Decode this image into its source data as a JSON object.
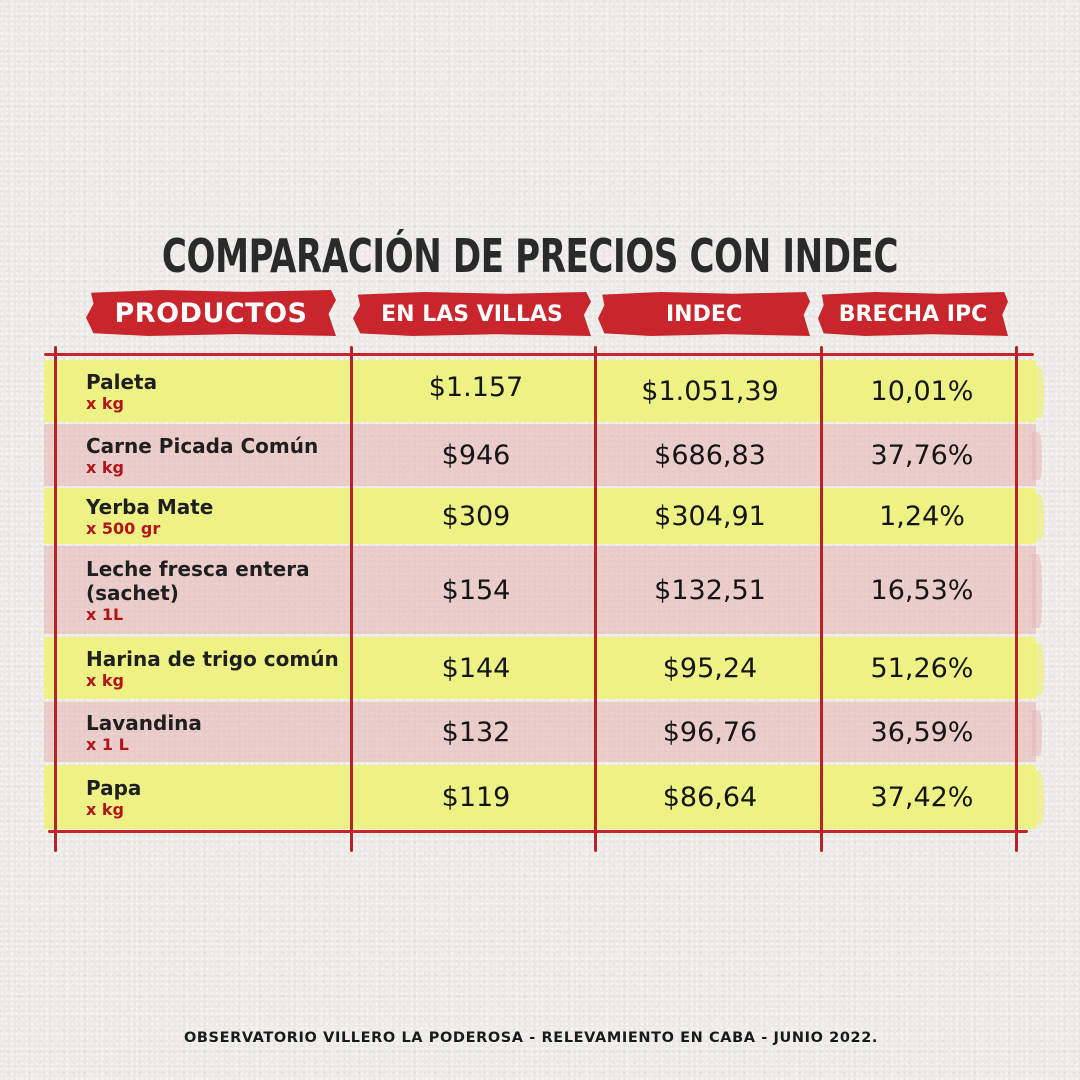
{
  "title": "COMPARACIÓN DE PRECIOS CON INDEC",
  "headers": {
    "productos": "PRODUCTOS",
    "villas": "EN LAS VILLAS",
    "indec": "INDEC",
    "brecha": "BRECHA IPC"
  },
  "rows": [
    {
      "name": "Paleta",
      "unit": "x kg",
      "villas": "$1.157",
      "indec": "$1.051,39",
      "brecha": "10,01%"
    },
    {
      "name": "Carne Picada Común",
      "unit": "x kg",
      "villas": "$946",
      "indec": "$686,83",
      "brecha": "37,76%"
    },
    {
      "name": "Yerba Mate",
      "unit": "x 500 gr",
      "villas": "$309",
      "indec": "$304,91",
      "brecha": "1,24%"
    },
    {
      "name": "Leche fresca entera (sachet)",
      "unit": "x 1L",
      "villas": "$154",
      "indec": "$132,51",
      "brecha": "16,53%"
    },
    {
      "name": "Harina de trigo común",
      "unit": "x kg",
      "villas": "$144",
      "indec": "$95,24",
      "brecha": "51,26%"
    },
    {
      "name": "Lavandina",
      "unit": "x 1 L",
      "villas": "$132",
      "indec": "$96,76",
      "brecha": "36,59%"
    },
    {
      "name": "Papa",
      "unit": "x kg",
      "villas": "$119",
      "indec": "$86,64",
      "brecha": "37,42%"
    }
  ],
  "footer": "OBSERVATORIO VILLERO LA PODEROSA - RELEVAMIENTO EN CABA - JUNIO 2022.",
  "colors": {
    "accent_red": "#c8262c",
    "highlight_yellow": "#eef276",
    "highlight_pink": "#e8b2b0",
    "unit_text": "#b3141b"
  }
}
